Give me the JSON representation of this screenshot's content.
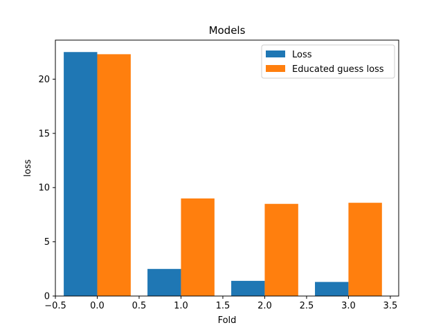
{
  "chart_data": {
    "type": "bar",
    "title": "Models",
    "xlabel": "Fold",
    "ylabel": "loss",
    "x": [
      0,
      1,
      2,
      3
    ],
    "bar_width": 0.4,
    "series": [
      {
        "name": "Loss",
        "color": "#1f77b4",
        "values": [
          22.5,
          2.5,
          1.4,
          1.3
        ]
      },
      {
        "name": "Educated guess loss",
        "color": "#ff7f0e",
        "values": [
          22.3,
          9.0,
          8.5,
          8.6
        ]
      }
    ],
    "xlim": [
      -0.5,
      3.6
    ],
    "ylim": [
      0,
      23.6
    ],
    "xticks": [
      -0.5,
      0.0,
      0.5,
      1.0,
      1.5,
      2.0,
      2.5,
      3.0,
      3.5
    ],
    "xtick_labels": [
      "−0.5",
      "0.0",
      "0.5",
      "1.0",
      "1.5",
      "2.0",
      "2.5",
      "3.0",
      "3.5"
    ],
    "yticks": [
      0,
      5,
      10,
      15,
      20
    ],
    "ytick_labels": [
      "0",
      "5",
      "10",
      "15",
      "20"
    ],
    "legend": {
      "position": "top-right"
    },
    "grid": false
  }
}
